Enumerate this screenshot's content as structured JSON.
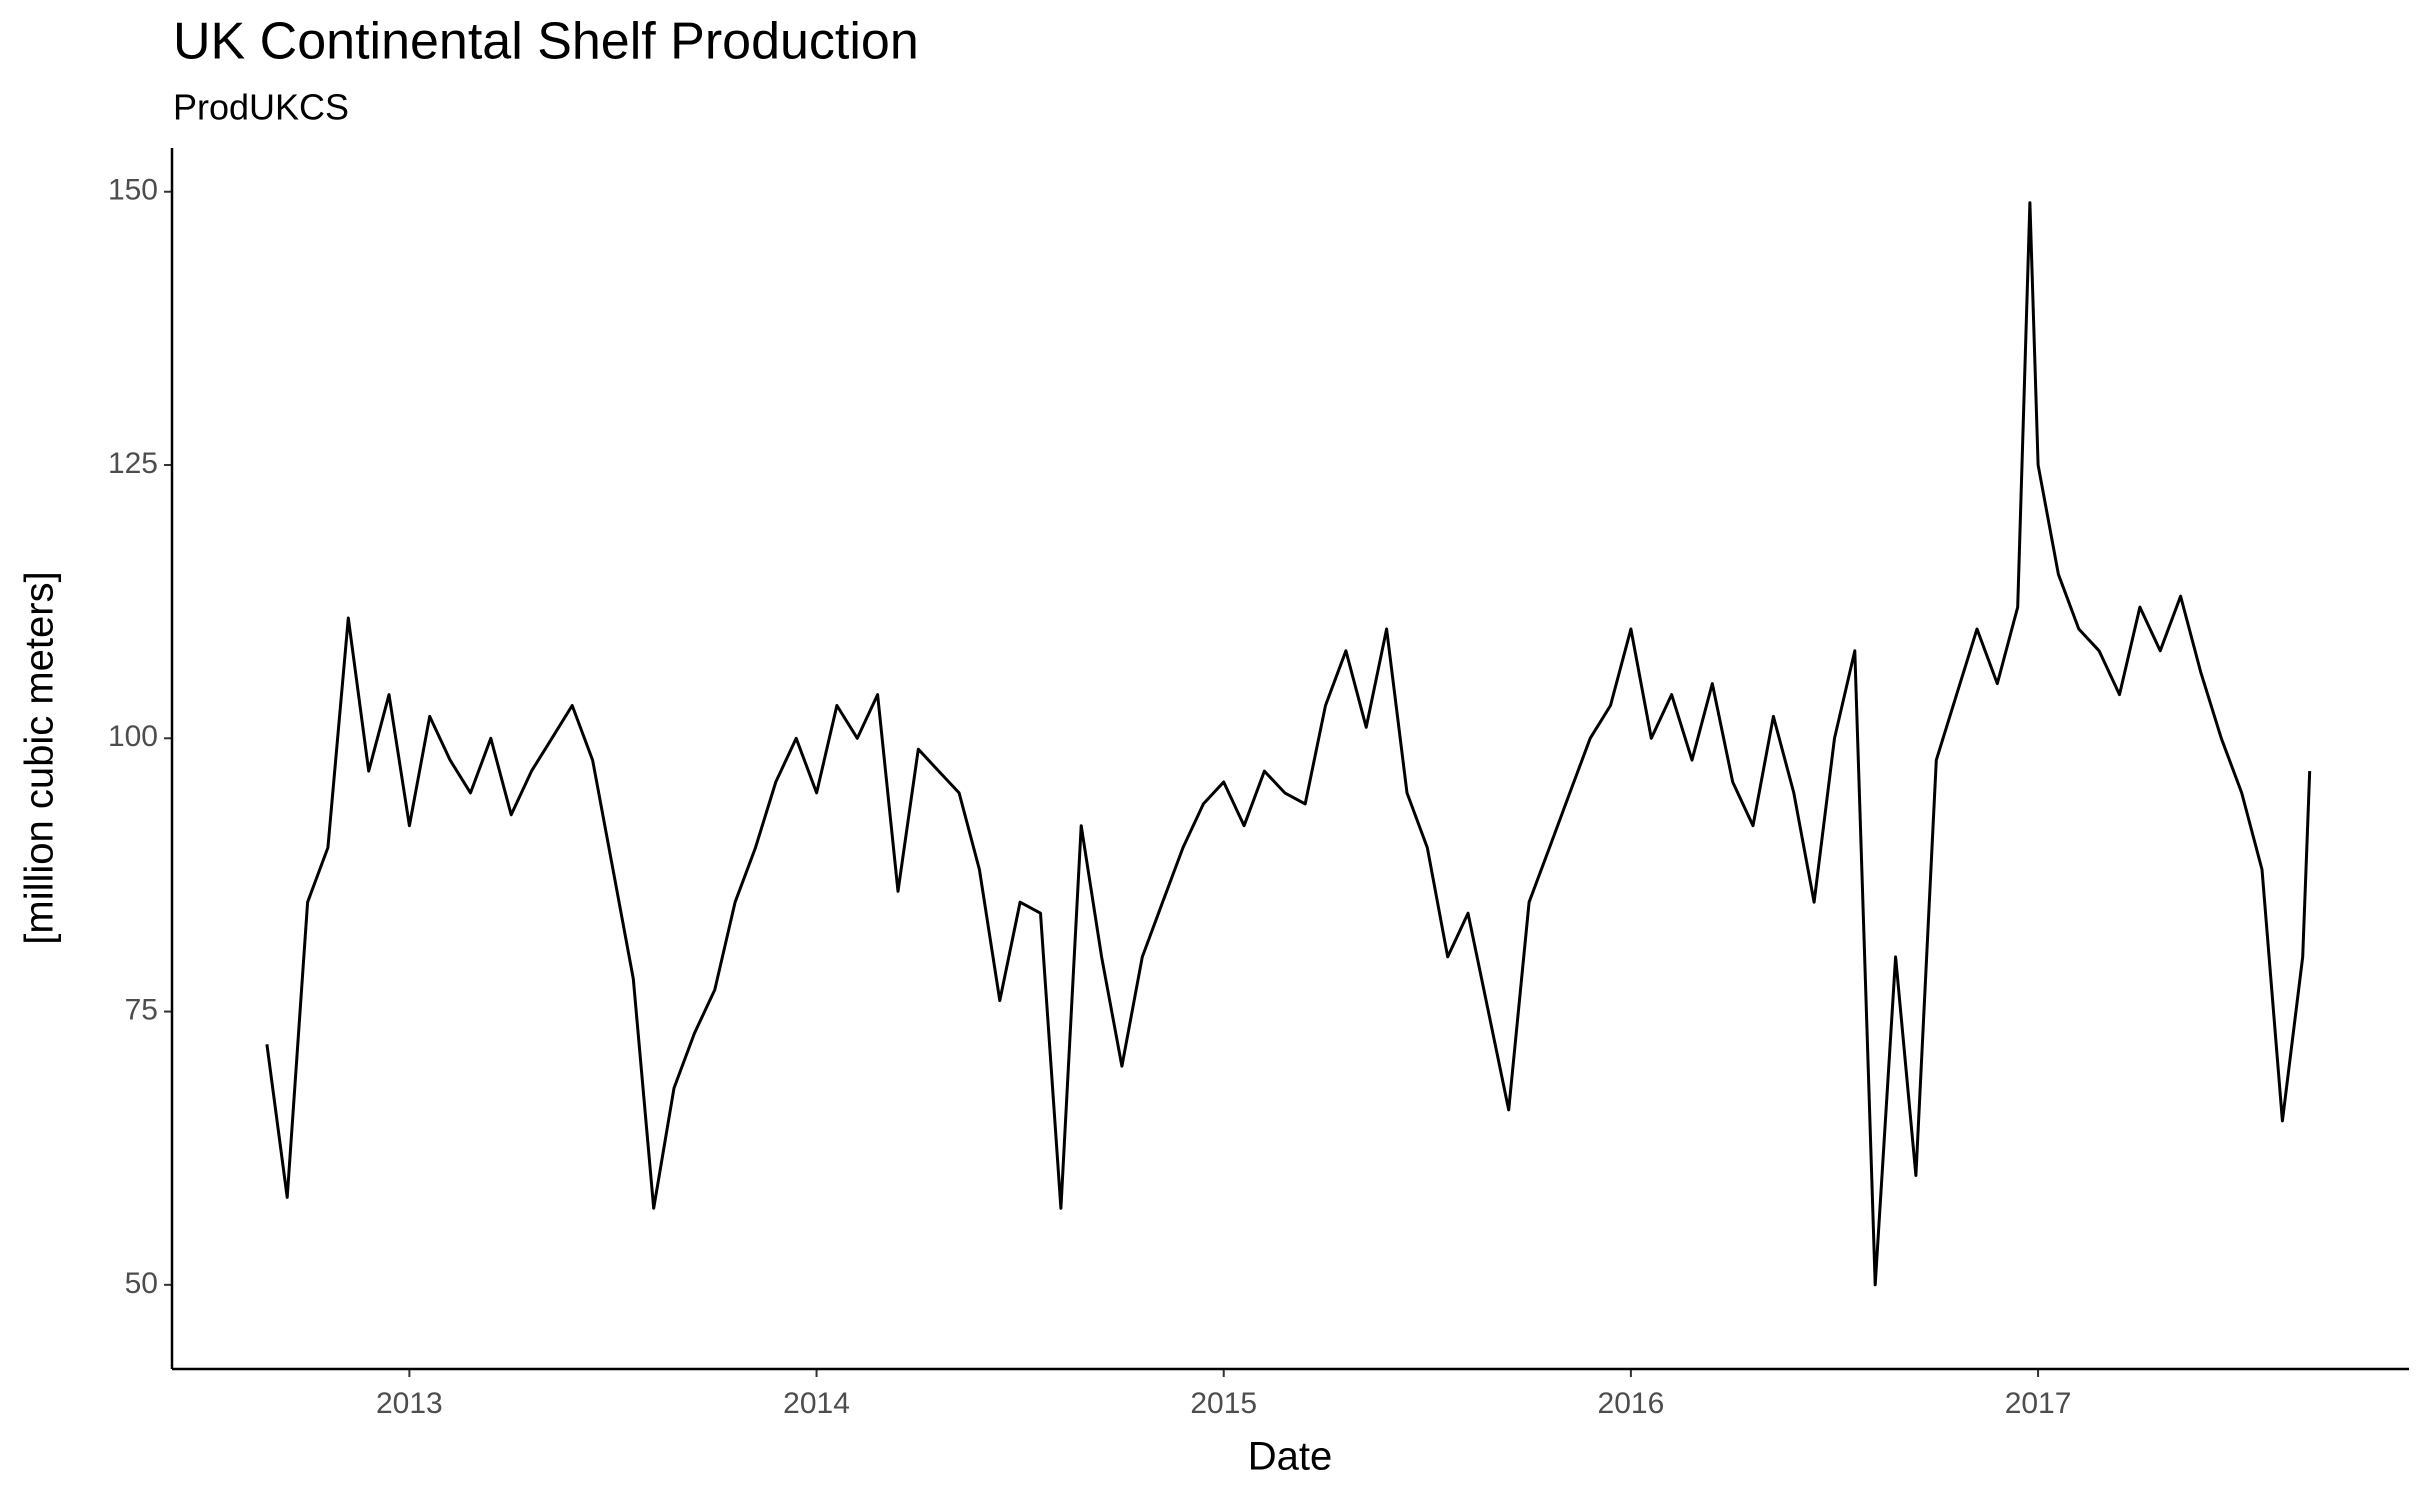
{
  "chart_data": {
    "type": "line",
    "title": "UK Continental Shelf Production",
    "subtitle": "ProdUKCS",
    "x_label": "Date",
    "y_label": "[million cubic meters]",
    "color": "#000000",
    "x": [
      2012.65,
      2012.7,
      2012.75,
      2012.8,
      2012.85,
      2012.9,
      2012.95,
      2013.0,
      2013.05,
      2013.1,
      2013.15,
      2013.2,
      2013.25,
      2013.3,
      2013.35,
      2013.4,
      2013.45,
      2013.5,
      2013.55,
      2013.6,
      2013.65,
      2013.7,
      2013.75,
      2013.8,
      2013.85,
      2013.9,
      2013.95,
      2014.0,
      2014.05,
      2014.1,
      2014.15,
      2014.2,
      2014.25,
      2014.3,
      2014.35,
      2014.4,
      2014.45,
      2014.5,
      2014.55,
      2014.6,
      2014.65,
      2014.7,
      2014.75,
      2014.8,
      2014.85,
      2014.9,
      2014.95,
      2015.0,
      2015.05,
      2015.1,
      2015.15,
      2015.2,
      2015.25,
      2015.3,
      2015.35,
      2015.4,
      2015.45,
      2015.5,
      2015.55,
      2015.6,
      2015.65,
      2015.7,
      2015.75,
      2015.8,
      2015.85,
      2015.9,
      2015.95,
      2016.0,
      2016.05,
      2016.1,
      2016.15,
      2016.2,
      2016.25,
      2016.3,
      2016.35,
      2016.4,
      2016.45,
      2016.5,
      2016.55,
      2016.6,
      2016.65,
      2016.7,
      2016.75,
      2016.8,
      2016.85,
      2016.9,
      2016.95,
      2016.98,
      2017.0,
      2017.05,
      2017.1,
      2017.15,
      2017.2,
      2017.25,
      2017.3,
      2017.35,
      2017.4,
      2017.45,
      2017.5,
      2017.55,
      2017.6,
      2017.65,
      2017.667
    ],
    "values": [
      72,
      58,
      85,
      90,
      111,
      97,
      104,
      92,
      102,
      98,
      95,
      100,
      93,
      97,
      100,
      103,
      98,
      88,
      78,
      57,
      68,
      73,
      77,
      85,
      90,
      96,
      100,
      95,
      103,
      100,
      104,
      86,
      99,
      97,
      95,
      88,
      76,
      85,
      84,
      57,
      92,
      80,
      70,
      80,
      85,
      90,
      94,
      96,
      92,
      97,
      95,
      94,
      103,
      108,
      101,
      110,
      95,
      90,
      80,
      84,
      75,
      66,
      85,
      90,
      95,
      100,
      103,
      110,
      100,
      104,
      98,
      105,
      96,
      92,
      102,
      95,
      85,
      100,
      108,
      50,
      80,
      60,
      98,
      104,
      110,
      105,
      112,
      149,
      125,
      115,
      110,
      108,
      104,
      112,
      108,
      113,
      106,
      100,
      95,
      88,
      65,
      80,
      97
    ],
    "xlim": [
      2012.417,
      2017.911
    ],
    "xticks": [
      2013,
      2014,
      2015,
      2016,
      2017
    ],
    "ylim": [
      42.3,
      154
    ],
    "yticks": [
      50,
      75,
      100,
      125,
      150
    ],
    "grid": false
  }
}
